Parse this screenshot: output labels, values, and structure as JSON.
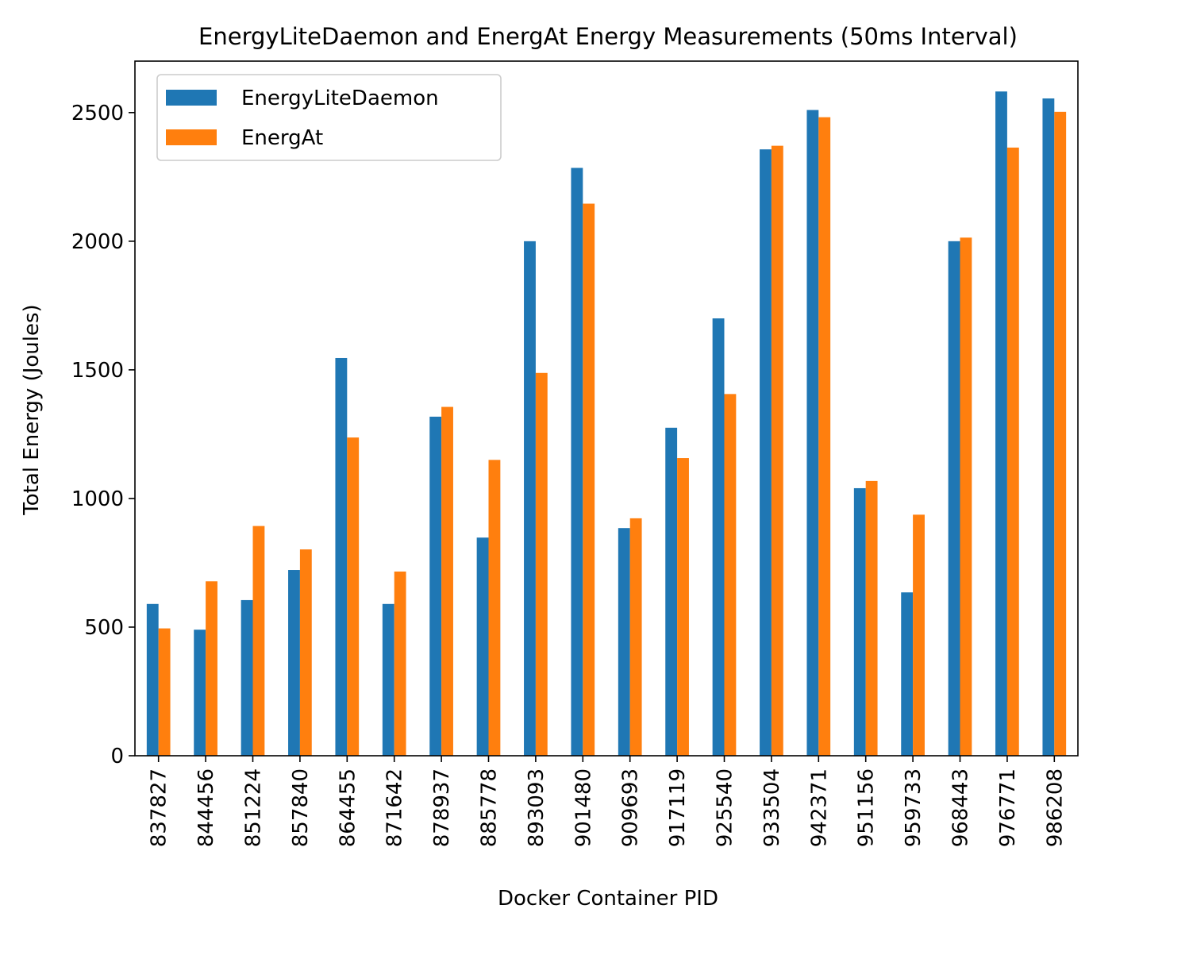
{
  "chart_data": {
    "type": "bar",
    "title": "EnergyLiteDaemon and EnergAt Energy Measurements (50ms Interval)",
    "xlabel": "Docker Container PID",
    "ylabel": "Total Energy (Joules)",
    "ylim": [
      0,
      2700
    ],
    "yticks": [
      0,
      500,
      1000,
      1500,
      2000,
      2500
    ],
    "grid": false,
    "legend_position": "upper left",
    "categories": [
      "837827",
      "844456",
      "851224",
      "857840",
      "864455",
      "871642",
      "878937",
      "885778",
      "893093",
      "901480",
      "909693",
      "917119",
      "925540",
      "933504",
      "942371",
      "951156",
      "959733",
      "968443",
      "976771",
      "986208"
    ],
    "series": [
      {
        "name": "EnergyLiteDaemon",
        "color": "#1f77b4",
        "values": [
          590,
          490,
          605,
          722,
          1546,
          590,
          1318,
          848,
          2000,
          2285,
          885,
          1275,
          1700,
          2357,
          2510,
          1040,
          635,
          2000,
          2582,
          2555
        ]
      },
      {
        "name": "EnergAt",
        "color": "#ff7f0e",
        "values": [
          495,
          678,
          893,
          802,
          1237,
          716,
          1356,
          1150,
          1488,
          2146,
          923,
          1157,
          1406,
          2371,
          2482,
          1068,
          937,
          2014,
          2364,
          2503
        ]
      }
    ]
  }
}
